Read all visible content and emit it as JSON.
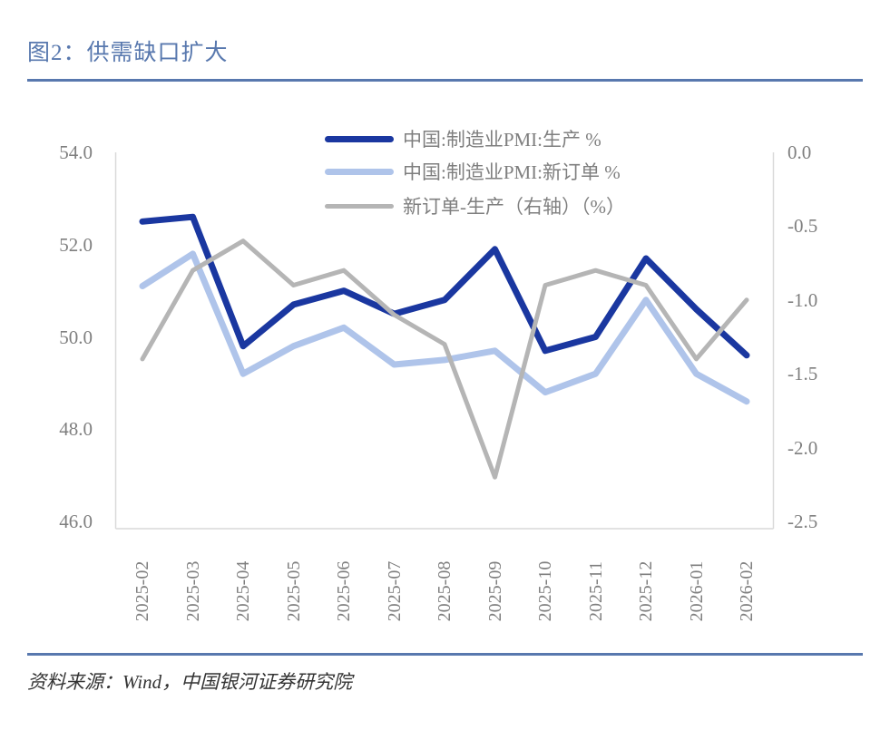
{
  "figure": {
    "title": "图2：供需缺口扩大",
    "source": "资料来源：Wind，中国银河证券研究院"
  },
  "colors": {
    "accent_blue": "#5878AE",
    "production_line": "#1A37A0",
    "new_orders_line": "#AFC4EA",
    "gap_line": "#B5B5B5",
    "axis_line": "#D9D9D9",
    "tick_text": "#7F7F7F",
    "source_text": "#333333"
  },
  "chart_data": {
    "type": "line",
    "x": [
      "2025-02",
      "2025-03",
      "2025-04",
      "2025-05",
      "2025-06",
      "2025-07",
      "2025-08",
      "2025-09",
      "2025-10",
      "2025-11",
      "2025-12",
      "2026-01",
      "2026-02"
    ],
    "series": [
      {
        "name": "中国:制造业PMI:生产 %",
        "axis": "left",
        "color": "#1A37A0",
        "values": [
          52.5,
          52.6,
          49.8,
          50.7,
          51.0,
          50.5,
          50.8,
          51.9,
          49.7,
          50.0,
          51.7,
          50.6,
          49.6
        ]
      },
      {
        "name": "中国:制造业PMI:新订单 %",
        "axis": "left",
        "color": "#AFC4EA",
        "values": [
          51.1,
          51.8,
          49.2,
          49.8,
          50.2,
          49.4,
          49.5,
          49.7,
          48.8,
          49.2,
          50.8,
          49.2,
          48.6
        ]
      },
      {
        "name": "新订单-生产（右轴）（%）",
        "axis": "right",
        "color": "#B5B5B5",
        "values": [
          -1.4,
          -0.8,
          -0.6,
          -0.9,
          -0.8,
          -1.1,
          -1.3,
          -2.2,
          -0.9,
          -0.8,
          -0.9,
          -1.4,
          -1.0
        ]
      }
    ],
    "left_axis": {
      "min": 46.0,
      "max": 54.0,
      "ticks": [
        "54.0",
        "52.0",
        "50.0",
        "48.0",
        "46.0"
      ]
    },
    "right_axis": {
      "min": -2.5,
      "max": 0.0,
      "ticks": [
        "0.0",
        "-0.5",
        "-1.0",
        "-1.5",
        "-2.0",
        "-2.5"
      ]
    },
    "grid": false,
    "legend_position": "top-center"
  }
}
